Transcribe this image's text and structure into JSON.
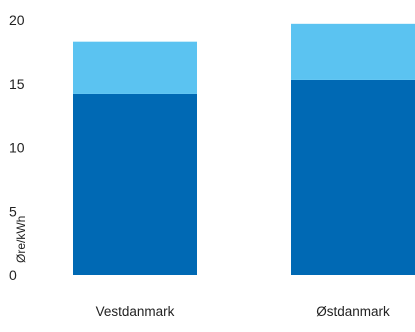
{
  "chart_data": {
    "type": "bar",
    "stacked": true,
    "title": "",
    "xlabel": "",
    "ylabel": "Øre/kWh",
    "ylim": [
      0,
      20
    ],
    "yticks": [
      0,
      5,
      10,
      15,
      20
    ],
    "grid": false,
    "legend": "none",
    "categories": [
      "Vestdanmark",
      "Østdanmark"
    ],
    "series": [
      {
        "values": [
          14.2,
          15.3
        ],
        "color": "#0069b4"
      },
      {
        "values": [
          4.1,
          4.4
        ],
        "color": "#5bc3f1"
      }
    ]
  }
}
